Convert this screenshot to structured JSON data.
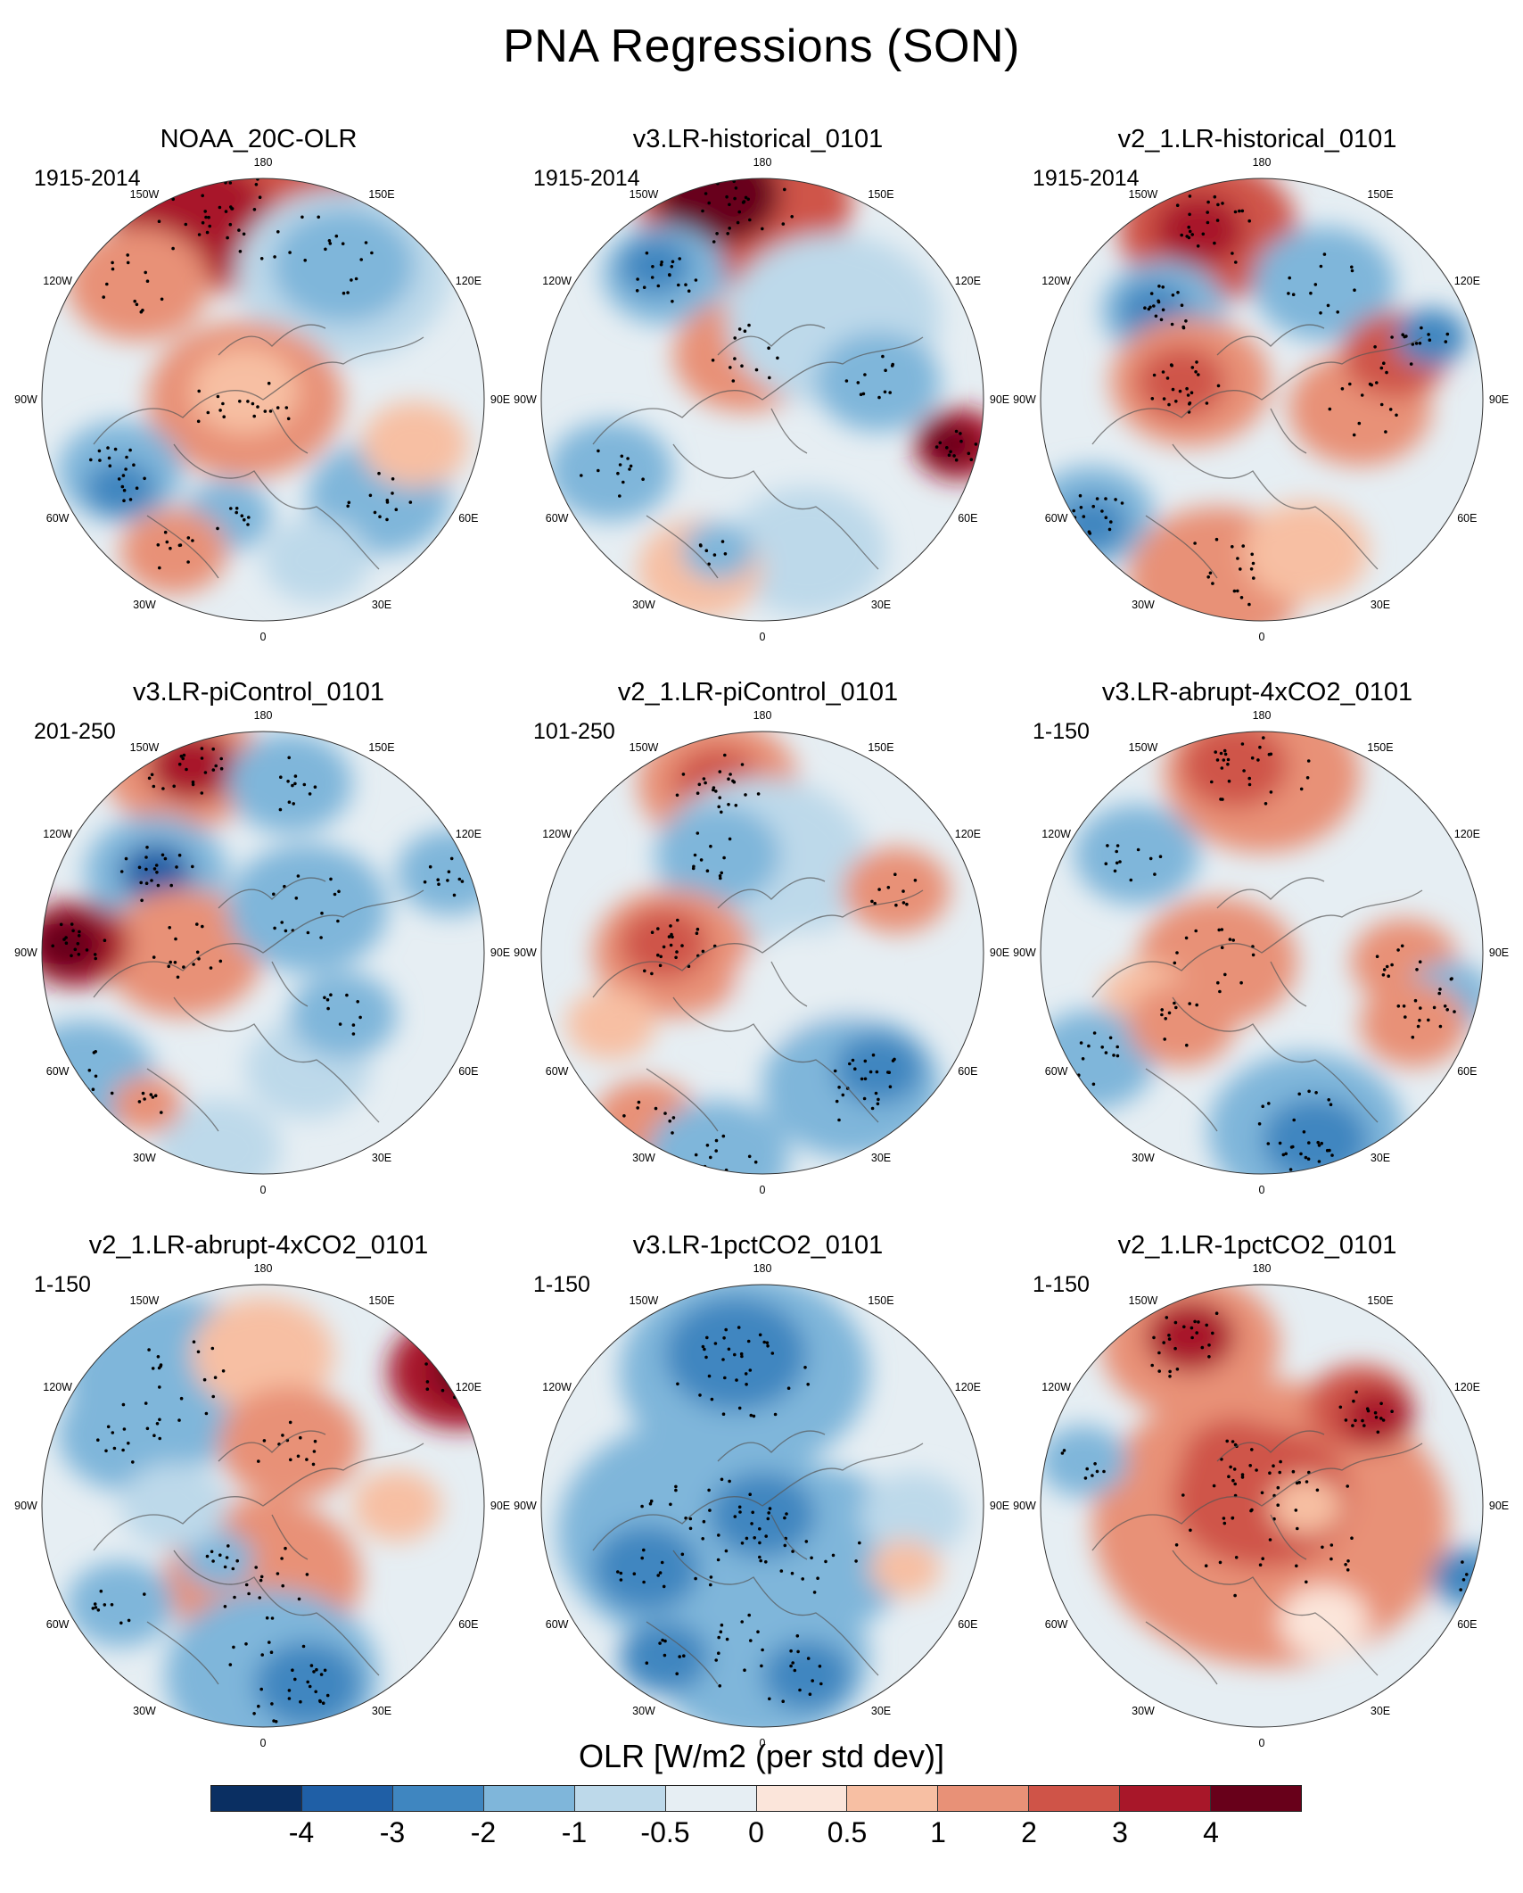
{
  "title": "PNA Regressions (SON)",
  "colorbar": {
    "label": "OLR [W/m2 (per std dev)]",
    "colors": [
      "#0a2f62",
      "#1f5fa6",
      "#3f86c0",
      "#7fb6da",
      "#bdd9ea",
      "#e6eef3",
      "#fbe5da",
      "#f7bfa3",
      "#e89177",
      "#cf5448",
      "#a81729",
      "#68001a"
    ],
    "ticks": [
      "-4",
      "-3",
      "-2",
      "-1",
      "-0.5",
      "0",
      "0.5",
      "1",
      "2",
      "3",
      "4"
    ]
  },
  "lon_labels": [
    "180",
    "150E",
    "120E",
    "90E",
    "60E",
    "30E",
    "0",
    "30W",
    "60W",
    "90W",
    "120W",
    "150W"
  ],
  "panels": [
    {
      "title": "NOAA_20C-OLR",
      "period": "1915-2014"
    },
    {
      "title": "v3.LR-historical_0101",
      "period": "1915-2014"
    },
    {
      "title": "v2_1.LR-historical_0101",
      "period": "1915-2014"
    },
    {
      "title": "v3.LR-piControl_0101",
      "period": "201-250"
    },
    {
      "title": "v2_1.LR-piControl_0101",
      "period": "101-250"
    },
    {
      "title": "v3.LR-abrupt-4xCO2_0101",
      "period": "1-150"
    },
    {
      "title": "v2_1.LR-abrupt-4xCO2_0101",
      "period": "1-150"
    },
    {
      "title": "v3.LR-1pctCO2_0101",
      "period": "1-150"
    },
    {
      "title": "v2_1.LR-1pctCO2_0101",
      "period": "1-150"
    }
  ]
}
